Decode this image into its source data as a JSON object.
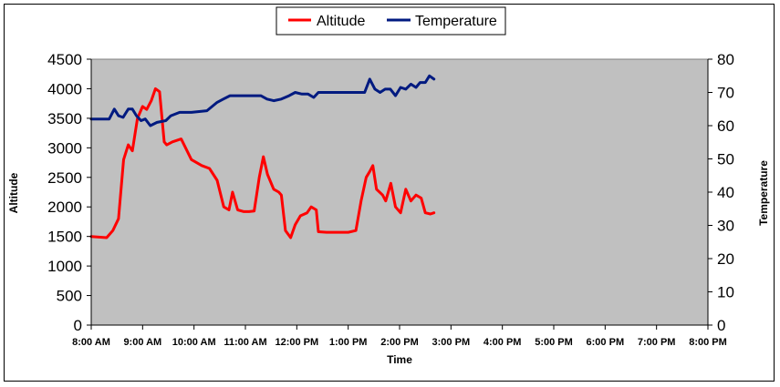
{
  "chart_data": {
    "type": "line",
    "xlabel": "Time",
    "ylabel_left": "Altitude",
    "ylabel_right": "Temperature",
    "x_ticks": [
      "8:00 AM",
      "9:00 AM",
      "10:00 AM",
      "11:00 AM",
      "12:00 PM",
      "1:00 PM",
      "2:00 PM",
      "3:00 PM",
      "4:00 PM",
      "5:00 PM",
      "6:00 PM",
      "7:00 PM",
      "8:00 PM"
    ],
    "x_range_hours": [
      8,
      20
    ],
    "y_left_ticks": [
      "0",
      "500",
      "1000",
      "1500",
      "2000",
      "2500",
      "3000",
      "3500",
      "4000",
      "4500"
    ],
    "y_left_range": [
      0,
      4500
    ],
    "y_right_ticks": [
      "0",
      "10",
      "20",
      "30",
      "40",
      "50",
      "60",
      "70",
      "80"
    ],
    "y_right_range": [
      0,
      80
    ],
    "grid": false,
    "plot_background": "#c0c0c0",
    "legend_position": "top-center",
    "series": [
      {
        "name": "Altitude",
        "axis": "left",
        "color": "#ff0000",
        "x": [
          8.0,
          8.3,
          8.42,
          8.53,
          8.63,
          8.72,
          8.8,
          8.9,
          9.0,
          9.08,
          9.17,
          9.25,
          9.33,
          9.42,
          9.47,
          9.58,
          9.75,
          9.95,
          10.05,
          10.15,
          10.3,
          10.45,
          10.58,
          10.68,
          10.75,
          10.85,
          10.97,
          11.07,
          11.17,
          11.27,
          11.35,
          11.43,
          11.55,
          11.65,
          11.7,
          11.78,
          11.88,
          11.97,
          12.07,
          12.2,
          12.28,
          12.38,
          12.42,
          12.58,
          12.8,
          13.0,
          13.15,
          13.25,
          13.35,
          13.42,
          13.48,
          13.55,
          13.67,
          13.73,
          13.83,
          13.92,
          14.02,
          14.12,
          14.22,
          14.32,
          14.42,
          14.5,
          14.6,
          14.67
        ],
        "y": [
          1500,
          1480,
          1600,
          1800,
          2800,
          3050,
          2950,
          3500,
          3700,
          3650,
          3800,
          4000,
          3950,
          3100,
          3050,
          3100,
          3150,
          2800,
          2750,
          2700,
          2650,
          2450,
          2000,
          1950,
          2250,
          1950,
          1920,
          1920,
          1930,
          2500,
          2850,
          2550,
          2300,
          2250,
          2200,
          1600,
          1480,
          1700,
          1850,
          1900,
          2000,
          1950,
          1580,
          1570,
          1570,
          1570,
          1600,
          2100,
          2500,
          2600,
          2700,
          2300,
          2200,
          2100,
          2400,
          2000,
          1900,
          2300,
          2100,
          2200,
          2150,
          1900,
          1880,
          1900
        ]
      },
      {
        "name": "Temperature",
        "axis": "right",
        "color": "#001a80",
        "x": [
          8.0,
          8.18,
          8.35,
          8.45,
          8.53,
          8.62,
          8.72,
          8.8,
          8.88,
          8.97,
          9.05,
          9.15,
          9.28,
          9.45,
          9.55,
          9.72,
          9.95,
          10.25,
          10.45,
          10.57,
          10.7,
          10.85,
          11.0,
          11.17,
          11.3,
          11.42,
          11.55,
          11.7,
          11.85,
          11.97,
          12.1,
          12.22,
          12.33,
          12.42,
          12.58,
          12.8,
          13.0,
          13.15,
          13.23,
          13.32,
          13.42,
          13.52,
          13.62,
          13.72,
          13.82,
          13.92,
          14.02,
          14.12,
          14.22,
          14.32,
          14.4,
          14.5,
          14.58,
          14.67
        ],
        "y": [
          62,
          62,
          62,
          65,
          63,
          62.5,
          65,
          65,
          63,
          61.5,
          62,
          60,
          61,
          61.5,
          63,
          64,
          64,
          64.5,
          67,
          68,
          69,
          69,
          69,
          69,
          69,
          68,
          67.5,
          68,
          69,
          70,
          69.5,
          69.5,
          68.5,
          70,
          70,
          70,
          70,
          70,
          70,
          70,
          74,
          71,
          70,
          71,
          71,
          69,
          71.5,
          71,
          72.5,
          71.5,
          73,
          73,
          75,
          74
        ]
      }
    ]
  }
}
